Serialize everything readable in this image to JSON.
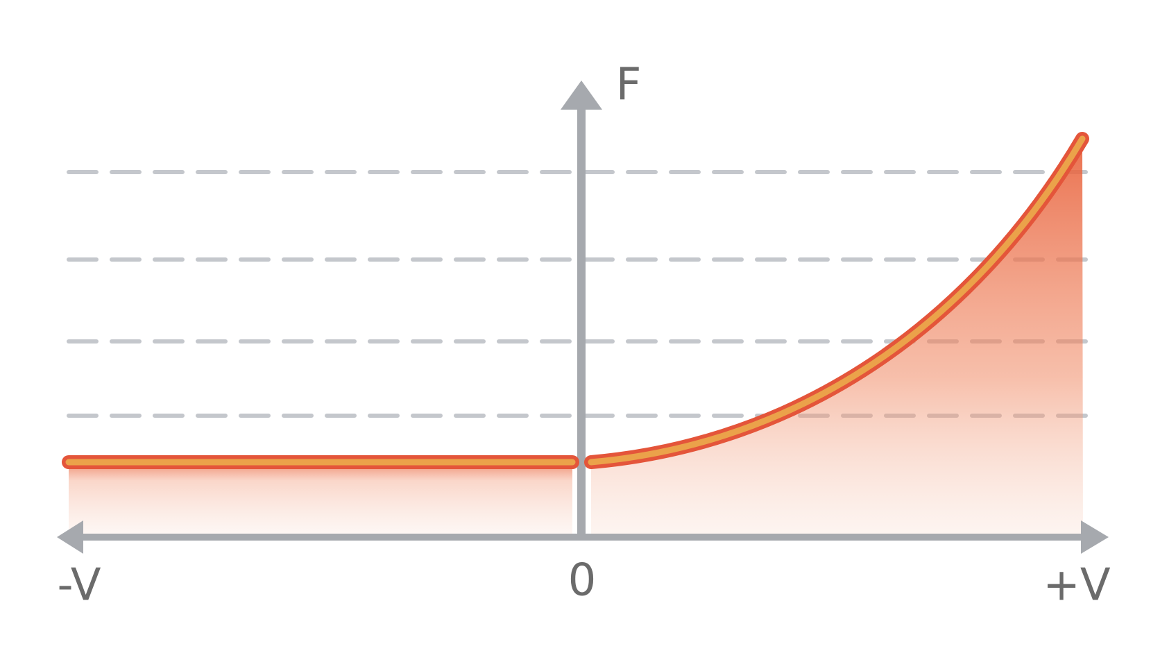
{
  "axes": {
    "y_label": "F",
    "x_labels": [
      "-V",
      "0",
      "+V"
    ]
  }
}
